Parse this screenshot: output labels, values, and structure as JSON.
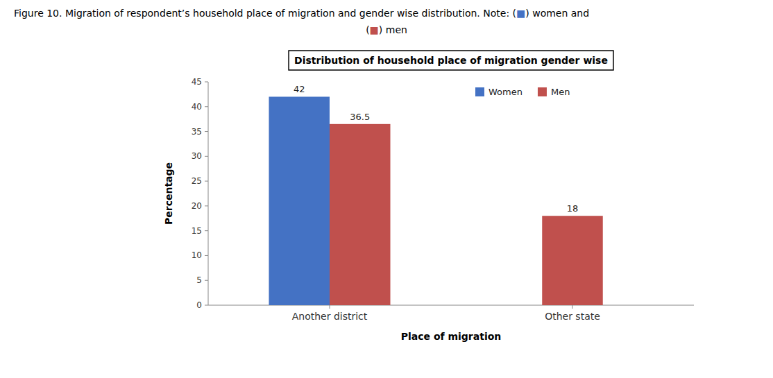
{
  "chart_data": {
    "type": "bar",
    "title": "Distribution of household place of migration gender wise",
    "xlabel": "Place of migration",
    "ylabel": "Percentage",
    "categories": [
      "Another district",
      "Other state"
    ],
    "series": [
      {
        "name": "Women",
        "color": "#4472C4",
        "values": [
          42,
          null
        ]
      },
      {
        "name": "Men",
        "color": "#C0504D",
        "values": [
          36.5,
          18
        ]
      }
    ],
    "ylim": [
      0,
      45
    ],
    "yticks": [
      0,
      5,
      10,
      15,
      20,
      25,
      30,
      35,
      40,
      45
    ],
    "grid": false,
    "legend": "top",
    "data_labels": true,
    "annotations": [
      [
        "Figure 10. Migration of respondent’s household place of migration and gender wise distribution. Note: (",
        "■",
        ") women and"
      ],
      [
        "(",
        "■",
        ") men"
      ]
    ]
  }
}
